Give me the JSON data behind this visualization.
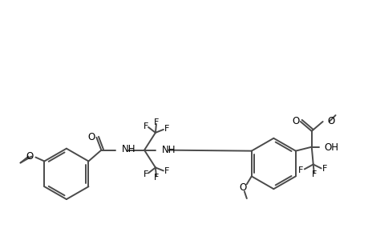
{
  "bg": "#ffffff",
  "lc": "#4a4a4a",
  "tc": "#000000",
  "lw": 1.4,
  "fs": 8.5,
  "fw": 4.6,
  "fh": 3.0,
  "dpi": 100,
  "xlim": [
    0,
    460
  ],
  "ylim": [
    0,
    300
  ]
}
